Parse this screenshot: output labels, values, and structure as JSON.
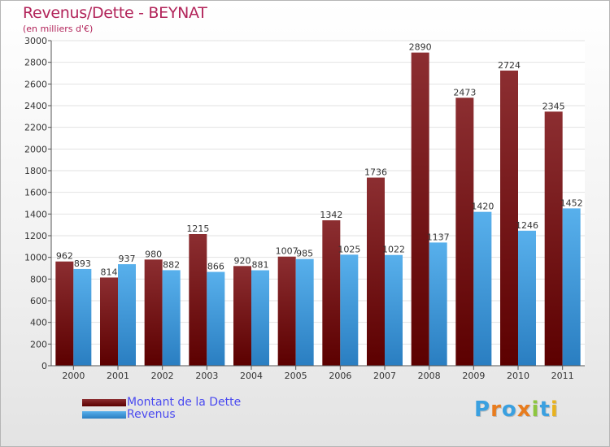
{
  "title": "Revenus/Dette - BEYNAT",
  "subtitle": "(en milliers d'€)",
  "colors": {
    "dette_top": "#8c2e31",
    "dette_bottom": "#5c0000",
    "revenus_top": "#58b0ec",
    "revenus_bottom": "#2a7ec1",
    "title": "#b2245a",
    "legend_text": "#4a4af0"
  },
  "logo": {
    "text": "Proxiti",
    "letters": [
      {
        "char": "P",
        "color": "#3aa0e0"
      },
      {
        "char": "r",
        "color": "#e87c1e"
      },
      {
        "char": "o",
        "color": "#3aa0e0"
      },
      {
        "char": "x",
        "color": "#e87c1e"
      },
      {
        "char": "i",
        "color": "#8dc63f"
      },
      {
        "char": "t",
        "color": "#3aa0e0"
      },
      {
        "char": "i",
        "color": "#e8b21e"
      }
    ]
  },
  "chart_data": {
    "type": "bar",
    "title": "Revenus/Dette - BEYNAT",
    "subtitle": "(en milliers d'€)",
    "xlabel": "",
    "ylabel": "",
    "categories": [
      "2000",
      "2001",
      "2002",
      "2003",
      "2004",
      "2005",
      "2006",
      "2007",
      "2008",
      "2009",
      "2010",
      "2011"
    ],
    "series": [
      {
        "name": "Montant de la Dette",
        "values": [
          962,
          814,
          980,
          1215,
          920,
          1007,
          1342,
          1736,
          2890,
          2473,
          2724,
          2345
        ]
      },
      {
        "name": "Revenus",
        "values": [
          893,
          937,
          882,
          866,
          881,
          985,
          1025,
          1022,
          1137,
          1420,
          1246,
          1452
        ]
      }
    ],
    "ylim": [
      0,
      3000
    ],
    "yticks": [
      0,
      200,
      400,
      600,
      800,
      1000,
      1200,
      1400,
      1600,
      1800,
      2000,
      2200,
      2400,
      2600,
      2800,
      3000
    ],
    "grid": true,
    "legend_position": "bottom-left"
  }
}
